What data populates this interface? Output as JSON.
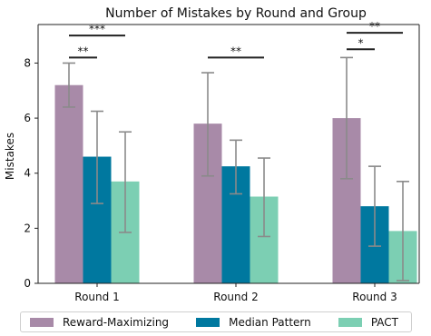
{
  "chart_data": {
    "type": "bar",
    "title": "Number of Mistakes by Round and Group",
    "xlabel": "",
    "ylabel": "Mistakes",
    "categories": [
      "Round 1",
      "Round 2",
      "Round 3"
    ],
    "ylim": [
      0,
      9.4
    ],
    "yticks": [
      0,
      2,
      4,
      6,
      8
    ],
    "grid": false,
    "legend_position": "bottom",
    "series": [
      {
        "name": "Reward-Maximizing",
        "color": "#a88aa8",
        "values": [
          7.2,
          5.8,
          6.0
        ],
        "err_low": [
          6.4,
          3.9,
          3.8
        ],
        "err_high": [
          8.0,
          7.65,
          8.2
        ]
      },
      {
        "name": "Median Pattern",
        "color": "#00789f",
        "values": [
          4.6,
          4.25,
          2.8
        ],
        "err_low": [
          2.9,
          3.25,
          1.35
        ],
        "err_high": [
          6.25,
          5.2,
          4.25
        ]
      },
      {
        "name": "PACT",
        "color": "#7ccfb3",
        "values": [
          3.7,
          3.15,
          1.9
        ],
        "err_low": [
          1.85,
          1.7,
          0.1
        ],
        "err_high": [
          5.5,
          4.55,
          3.7
        ]
      }
    ],
    "significance": [
      {
        "category_index": 0,
        "from_series": 0,
        "to_series": 1,
        "label": "**",
        "y": 8.2
      },
      {
        "category_index": 0,
        "from_series": 0,
        "to_series": 2,
        "label": "***",
        "y": 9.0
      },
      {
        "category_index": 1,
        "from_series": 0,
        "to_series": 2,
        "label": "**",
        "y": 8.2
      },
      {
        "category_index": 2,
        "from_series": 0,
        "to_series": 1,
        "label": "*",
        "y": 8.5
      },
      {
        "category_index": 2,
        "from_series": 0,
        "to_series": 2,
        "label": "**",
        "y": 9.1
      }
    ]
  }
}
